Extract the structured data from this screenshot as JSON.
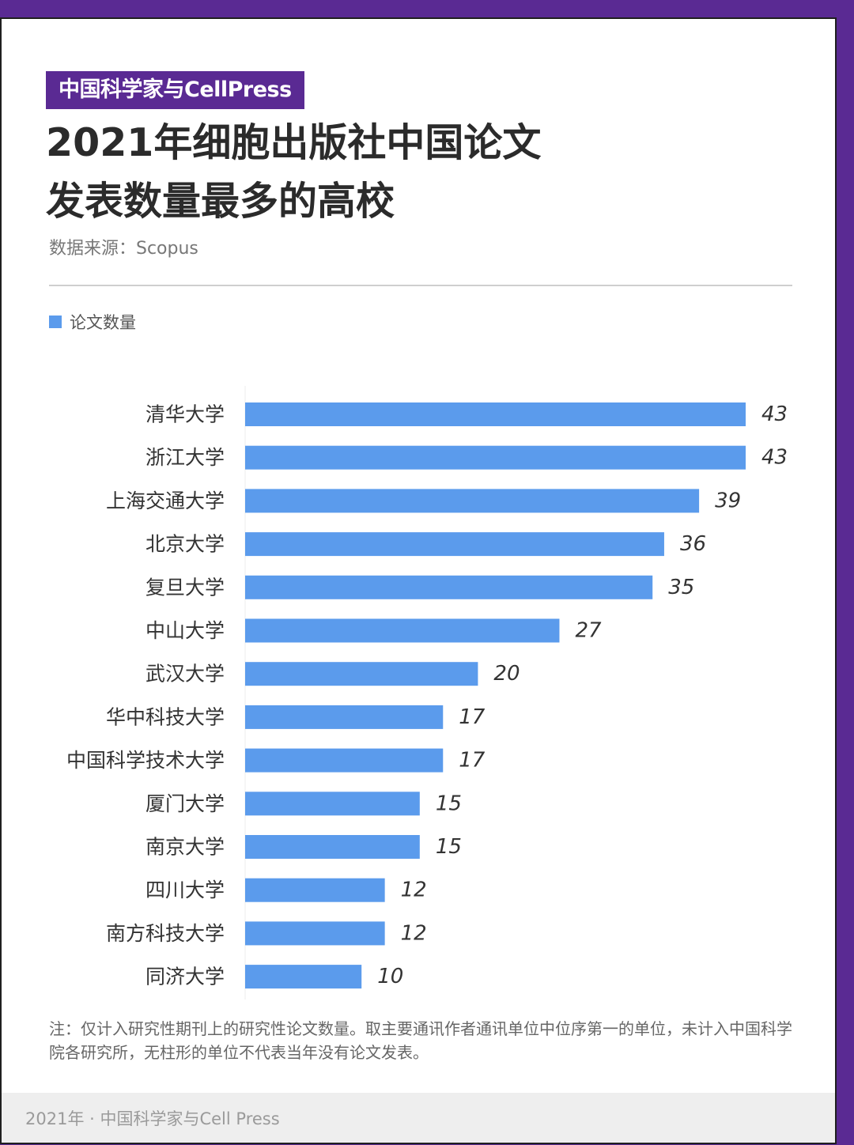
{
  "brand": {
    "tag": "中国科学家与CellPress"
  },
  "header": {
    "title_line1": "2021年细胞出版社中国论文",
    "title_line2": "发表数量最多的高校",
    "source": "数据来源：Scopus"
  },
  "legend": {
    "label": "论文数量"
  },
  "colors": {
    "accent_purple": "#5a2a93",
    "bar_blue": "#5b9bec"
  },
  "chart_data": {
    "type": "bar",
    "orientation": "horizontal",
    "title": "2021年细胞出版社中国论文发表数量最多的高校",
    "xlabel": "",
    "ylabel": "",
    "xlim": [
      0,
      43
    ],
    "grid": false,
    "legend_position": "top-left",
    "categories": [
      "清华大学",
      "浙江大学",
      "上海交通大学",
      "北京大学",
      "复旦大学",
      "中山大学",
      "武汉大学",
      "华中科技大学",
      "中国科学技术大学",
      "厦门大学",
      "南京大学",
      "四川大学",
      "南方科技大学",
      "同济大学"
    ],
    "series": [
      {
        "name": "论文数量",
        "values": [
          43,
          43,
          39,
          36,
          35,
          27,
          20,
          17,
          17,
          15,
          15,
          12,
          12,
          10
        ]
      }
    ]
  },
  "note": "注：仅计入研究性期刊上的研究性论文数量。取主要通讯作者通讯单位中位序第一的单位，未计入中国科学院各研究所，无柱形的单位不代表当年没有论文发表。",
  "footer": {
    "text": "2021年 · 中国科学家与Cell Press"
  }
}
